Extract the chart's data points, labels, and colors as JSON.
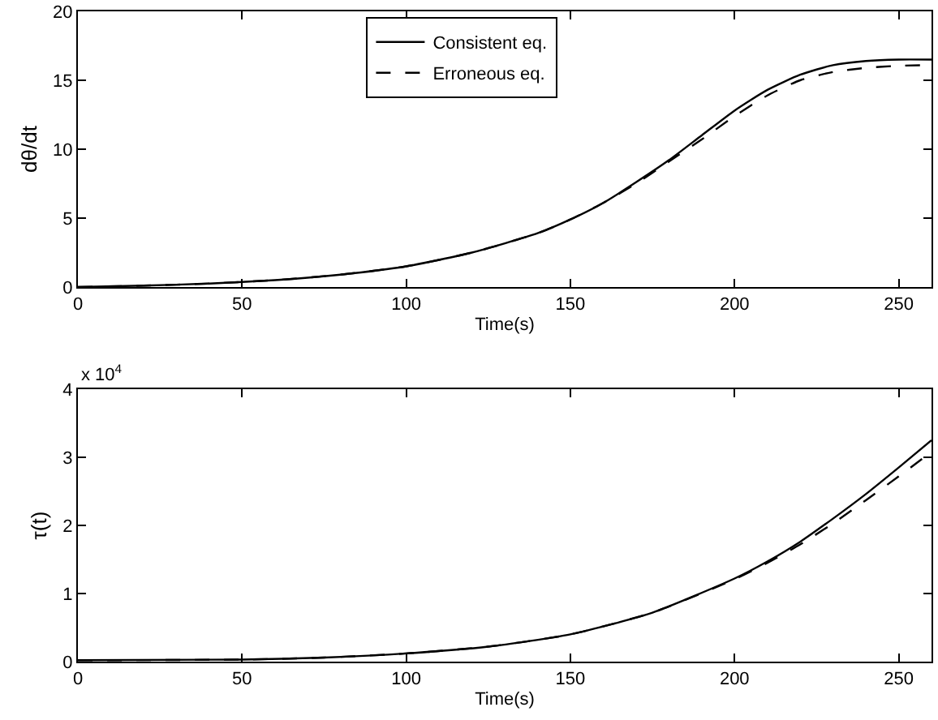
{
  "chart_data": [
    {
      "type": "line",
      "xlabel": "Time(s)",
      "ylabel": "dθ/dt",
      "xlim": [
        0,
        260
      ],
      "xticks": [
        0,
        50,
        100,
        150,
        200,
        250
      ],
      "ylim": [
        0,
        20
      ],
      "yticks": [
        0,
        5,
        10,
        15,
        20
      ],
      "grid": false,
      "legend": "top",
      "series": [
        {
          "name": "Consistent eq.",
          "color": "#000000",
          "line_style": "solid",
          "x": [
            0,
            20,
            40,
            60,
            80,
            100,
            120,
            140,
            150,
            160,
            170,
            180,
            190,
            200,
            210,
            220,
            230,
            240,
            250,
            260
          ],
          "values": [
            0,
            0.1,
            0.25,
            0.5,
            0.9,
            1.5,
            2.5,
            3.9,
            4.9,
            6.1,
            7.6,
            9.2,
            11,
            12.8,
            14.3,
            15.4,
            16.1,
            16.4,
            16.5,
            16.5
          ]
        },
        {
          "name": "Erroneous eq.",
          "color": "#000000",
          "line_style": "dashed",
          "x": [
            0,
            20,
            40,
            60,
            80,
            100,
            120,
            140,
            150,
            160,
            170,
            180,
            190,
            200,
            210,
            220,
            230,
            240,
            250,
            260
          ],
          "values": [
            0,
            0.1,
            0.25,
            0.5,
            0.9,
            1.5,
            2.5,
            3.9,
            4.9,
            6.1,
            7.5,
            9.1,
            10.7,
            12.4,
            13.9,
            15,
            15.6,
            15.9,
            16.05,
            16.1
          ]
        }
      ]
    },
    {
      "type": "line",
      "xlabel": "Time(s)",
      "ylabel": "τ(t)",
      "annotations": [
        "x 10$^{4}$"
      ],
      "xlim": [
        0,
        260
      ],
      "xticks": [
        0,
        50,
        100,
        150,
        200,
        250
      ],
      "ylim": [
        0,
        4
      ],
      "yticks": [
        0,
        1,
        2,
        3,
        4
      ],
      "grid": false,
      "legend": false,
      "series": [
        {
          "color": "#000000",
          "line_style": "solid",
          "x": [
            0,
            50,
            75,
            100,
            125,
            150,
            175,
            200,
            210,
            220,
            230,
            240,
            250,
            260
          ],
          "values": [
            0.02,
            0.03,
            0.06,
            0.12,
            0.22,
            0.4,
            0.72,
            1.22,
            1.47,
            1.76,
            2.1,
            2.46,
            2.85,
            3.25
          ]
        },
        {
          "color": "#000000",
          "line_style": "dashed",
          "x": [
            0,
            50,
            75,
            100,
            125,
            150,
            175,
            200,
            210,
            220,
            230,
            240,
            250,
            260
          ],
          "values": [
            0.02,
            0.03,
            0.06,
            0.12,
            0.22,
            0.4,
            0.72,
            1.21,
            1.45,
            1.72,
            2.03,
            2.37,
            2.72,
            3.08
          ]
        }
      ]
    }
  ]
}
